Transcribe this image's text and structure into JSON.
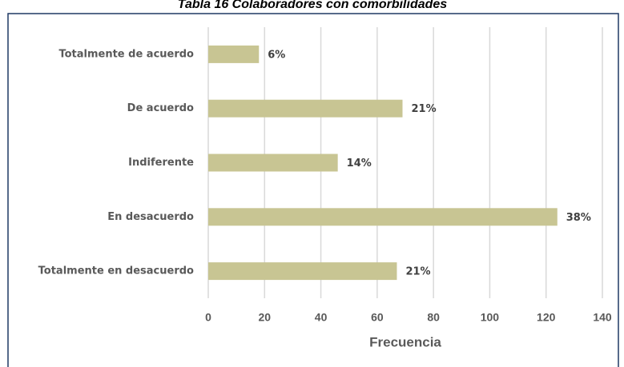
{
  "chart_data": {
    "type": "barh",
    "title": "Tabla 16 Colaboradores con comorbilidades",
    "categories": [
      "Totalmente de acuerdo",
      "De acuerdo",
      "Indiferente",
      "En desacuerdo",
      "Totalmente en desacuerdo"
    ],
    "values": [
      18,
      69,
      46,
      124,
      67
    ],
    "value_labels": [
      "6%",
      "21%",
      "14%",
      "38%",
      "21%"
    ],
    "color": "#c8c593",
    "xlabel": "Frecuencia",
    "xlim": [
      0,
      140
    ],
    "xticks": [
      0,
      20,
      40,
      60,
      80,
      100,
      120,
      140
    ],
    "grid": true
  }
}
